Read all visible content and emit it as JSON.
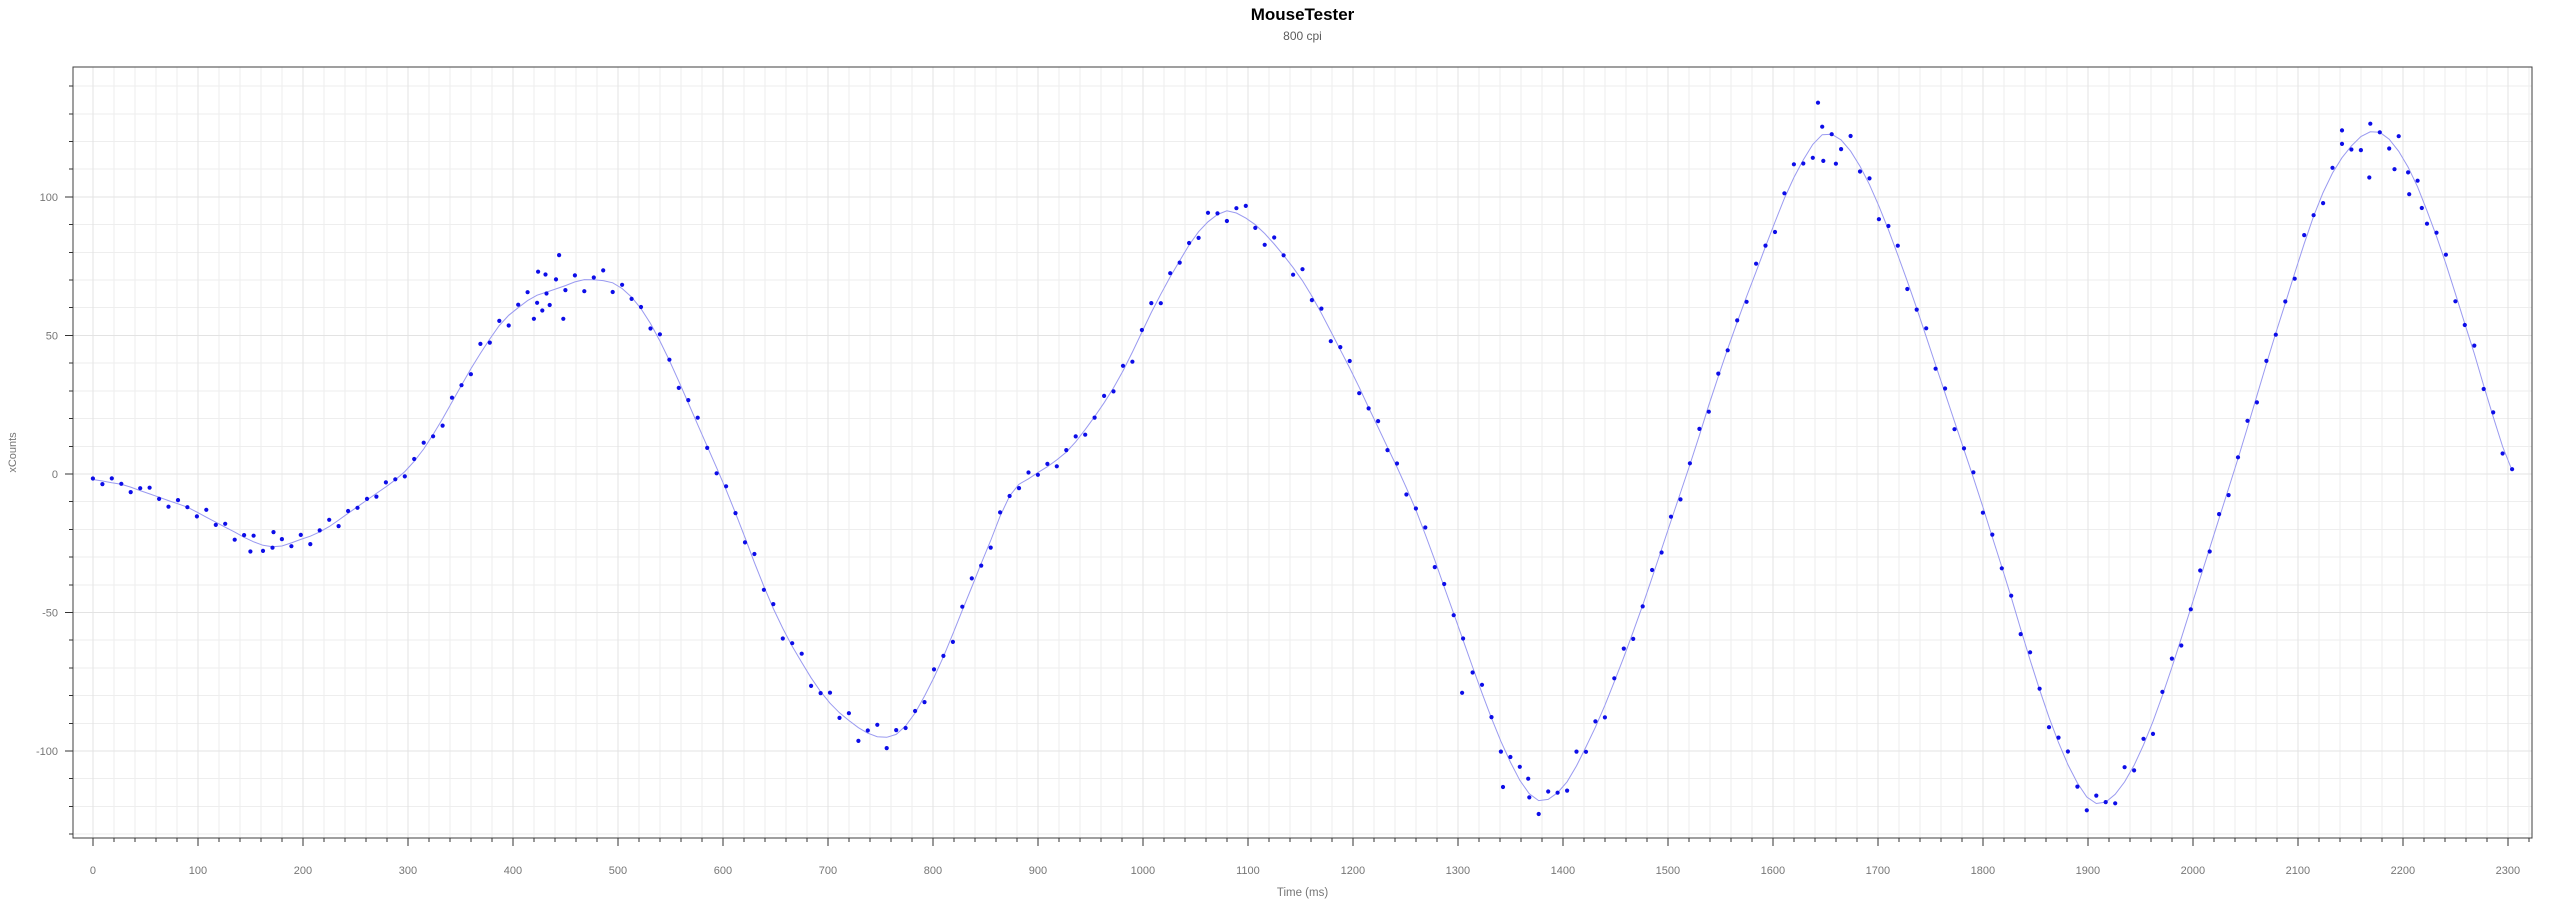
{
  "header": {
    "title": "MouseTester",
    "subtitle": "800 cpi"
  },
  "axes": {
    "x_label": "Time (ms)",
    "y_label": "xCounts"
  },
  "colors": {
    "point": "#0d0de8",
    "line": "#9a9af0",
    "grid_minor": "#eeeeee",
    "grid_major": "#e3e3e3",
    "plot_border": "#3f3f3f",
    "tick": "#333333",
    "tick_label": "#767676",
    "axis_title": "#767676",
    "title": "#000000",
    "subtitle": "#5c5c5c",
    "background": "#ffffff"
  },
  "chart_data": {
    "type": "scatter",
    "title": "MouseTester",
    "subtitle": "800 cpi",
    "xlabel": "Time (ms)",
    "ylabel": "xCounts",
    "xlim": [
      -19,
      2323
    ],
    "ylim": [
      -131.4,
      146.9
    ],
    "grid": true,
    "legend": "none",
    "x_tick_labels": [
      0,
      100,
      200,
      300,
      400,
      500,
      600,
      700,
      800,
      900,
      1000,
      1100,
      1200,
      1300,
      1400,
      1500,
      1600,
      1700,
      1800,
      1900,
      2000,
      2100,
      2200,
      2300
    ],
    "y_tick_labels": [
      -100,
      -50,
      0,
      50,
      100
    ],
    "x_major_step": 100,
    "x_minor_step": 20,
    "y_major_step": 50,
    "y_minor_step": 10,
    "series": [
      {
        "name": "xCounts",
        "marker_radius": 2.1,
        "sample_interval_ms": 9,
        "noise_base": 0.9,
        "noise_value_gain": 0.011,
        "noise_pattern": [
          0.4,
          -1.2,
          1.7,
          0.2,
          -1.9,
          0.9,
          2.3,
          -0.6,
          -2.2,
          1.3,
          0.0,
          -1.5,
          2.5,
          -0.9,
          1.1,
          -2.4,
          0.7,
          1.9,
          -1.7,
          -0.3,
          2.1,
          -1.0,
          1.4,
          -2.5,
          0.5,
          2.2,
          -2.0,
          0.8,
          -0.4
        ],
        "keypoints": [
          [
            0,
            -2
          ],
          [
            15,
            -3
          ],
          [
            30,
            -4
          ],
          [
            45,
            -6
          ],
          [
            60,
            -8
          ],
          [
            75,
            -10
          ],
          [
            90,
            -12
          ],
          [
            105,
            -15
          ],
          [
            120,
            -18
          ],
          [
            135,
            -21
          ],
          [
            150,
            -24
          ],
          [
            165,
            -26
          ],
          [
            180,
            -26
          ],
          [
            195,
            -24
          ],
          [
            210,
            -22
          ],
          [
            225,
            -19
          ],
          [
            240,
            -15
          ],
          [
            255,
            -11
          ],
          [
            270,
            -7
          ],
          [
            285,
            -3
          ],
          [
            300,
            2
          ],
          [
            315,
            9
          ],
          [
            330,
            18
          ],
          [
            345,
            28
          ],
          [
            360,
            38
          ],
          [
            375,
            47
          ],
          [
            390,
            55
          ],
          [
            405,
            60
          ],
          [
            420,
            64
          ],
          [
            435,
            66
          ],
          [
            450,
            68
          ],
          [
            465,
            70
          ],
          [
            480,
            70
          ],
          [
            495,
            69
          ],
          [
            510,
            65
          ],
          [
            525,
            58
          ],
          [
            540,
            48
          ],
          [
            555,
            36
          ],
          [
            570,
            23
          ],
          [
            585,
            10
          ],
          [
            600,
            -3
          ],
          [
            615,
            -17
          ],
          [
            630,
            -32
          ],
          [
            645,
            -46
          ],
          [
            660,
            -58
          ],
          [
            675,
            -68
          ],
          [
            690,
            -77
          ],
          [
            705,
            -84
          ],
          [
            720,
            -89
          ],
          [
            735,
            -93
          ],
          [
            750,
            -95
          ],
          [
            765,
            -94
          ],
          [
            780,
            -88
          ],
          [
            795,
            -78
          ],
          [
            810,
            -66
          ],
          [
            825,
            -52
          ],
          [
            840,
            -38
          ],
          [
            855,
            -24
          ],
          [
            868,
            -12
          ],
          [
            878,
            -5
          ],
          [
            890,
            -2
          ],
          [
            902,
            1
          ],
          [
            914,
            4
          ],
          [
            930,
            9
          ],
          [
            945,
            16
          ],
          [
            960,
            24
          ],
          [
            975,
            33
          ],
          [
            990,
            44
          ],
          [
            1005,
            56
          ],
          [
            1020,
            67
          ],
          [
            1035,
            77
          ],
          [
            1050,
            86
          ],
          [
            1065,
            92
          ],
          [
            1080,
            95
          ],
          [
            1095,
            93
          ],
          [
            1110,
            89
          ],
          [
            1125,
            83
          ],
          [
            1140,
            76
          ],
          [
            1155,
            68
          ],
          [
            1170,
            58
          ],
          [
            1185,
            47
          ],
          [
            1200,
            36
          ],
          [
            1215,
            24
          ],
          [
            1230,
            12
          ],
          [
            1245,
            0
          ],
          [
            1260,
            -13
          ],
          [
            1275,
            -28
          ],
          [
            1290,
            -44
          ],
          [
            1305,
            -60
          ],
          [
            1320,
            -76
          ],
          [
            1335,
            -91
          ],
          [
            1350,
            -104
          ],
          [
            1365,
            -114
          ],
          [
            1378,
            -118
          ],
          [
            1392,
            -116
          ],
          [
            1406,
            -110
          ],
          [
            1420,
            -100
          ],
          [
            1435,
            -88
          ],
          [
            1450,
            -74
          ],
          [
            1465,
            -59
          ],
          [
            1480,
            -43
          ],
          [
            1495,
            -26
          ],
          [
            1510,
            -9
          ],
          [
            1525,
            8
          ],
          [
            1540,
            26
          ],
          [
            1555,
            43
          ],
          [
            1570,
            59
          ],
          [
            1585,
            74
          ],
          [
            1600,
            89
          ],
          [
            1615,
            103
          ],
          [
            1630,
            114
          ],
          [
            1645,
            122
          ],
          [
            1660,
            122
          ],
          [
            1675,
            116
          ],
          [
            1690,
            106
          ],
          [
            1705,
            93
          ],
          [
            1720,
            78
          ],
          [
            1735,
            62
          ],
          [
            1750,
            45
          ],
          [
            1765,
            28
          ],
          [
            1780,
            11
          ],
          [
            1795,
            -6
          ],
          [
            1810,
            -24
          ],
          [
            1825,
            -42
          ],
          [
            1840,
            -61
          ],
          [
            1855,
            -79
          ],
          [
            1870,
            -95
          ],
          [
            1885,
            -108
          ],
          [
            1900,
            -117
          ],
          [
            1912,
            -119
          ],
          [
            1925,
            -116
          ],
          [
            1940,
            -108
          ],
          [
            1955,
            -96
          ],
          [
            1970,
            -81
          ],
          [
            1985,
            -64
          ],
          [
            2000,
            -46
          ],
          [
            2015,
            -28
          ],
          [
            2030,
            -10
          ],
          [
            2045,
            8
          ],
          [
            2060,
            27
          ],
          [
            2075,
            46
          ],
          [
            2090,
            64
          ],
          [
            2105,
            82
          ],
          [
            2120,
            98
          ],
          [
            2135,
            110
          ],
          [
            2150,
            118
          ],
          [
            2165,
            123
          ],
          [
            2180,
            123
          ],
          [
            2195,
            117
          ],
          [
            2210,
            107
          ],
          [
            2225,
            93
          ],
          [
            2240,
            77
          ],
          [
            2255,
            59
          ],
          [
            2270,
            41
          ],
          [
            2285,
            22
          ],
          [
            2297,
            8
          ],
          [
            2306,
            0
          ],
          [
            2312,
            -2
          ]
        ],
        "outliers": [
          [
            420,
            56
          ],
          [
            428,
            59
          ],
          [
            435,
            61
          ],
          [
            444,
            79
          ],
          [
            448,
            56
          ],
          [
            424,
            73
          ],
          [
            431,
            72
          ],
          [
            150,
            -28
          ],
          [
            172,
            -21
          ],
          [
            1304,
            -79
          ],
          [
            1343,
            -113
          ],
          [
            1367,
            -110
          ],
          [
            1643,
            134
          ],
          [
            1648,
            113
          ],
          [
            1660,
            112
          ],
          [
            2142,
            124
          ],
          [
            2168,
            107
          ],
          [
            2192,
            110
          ],
          [
            2206,
            101
          ],
          [
            2218,
            96
          ]
        ]
      }
    ]
  }
}
